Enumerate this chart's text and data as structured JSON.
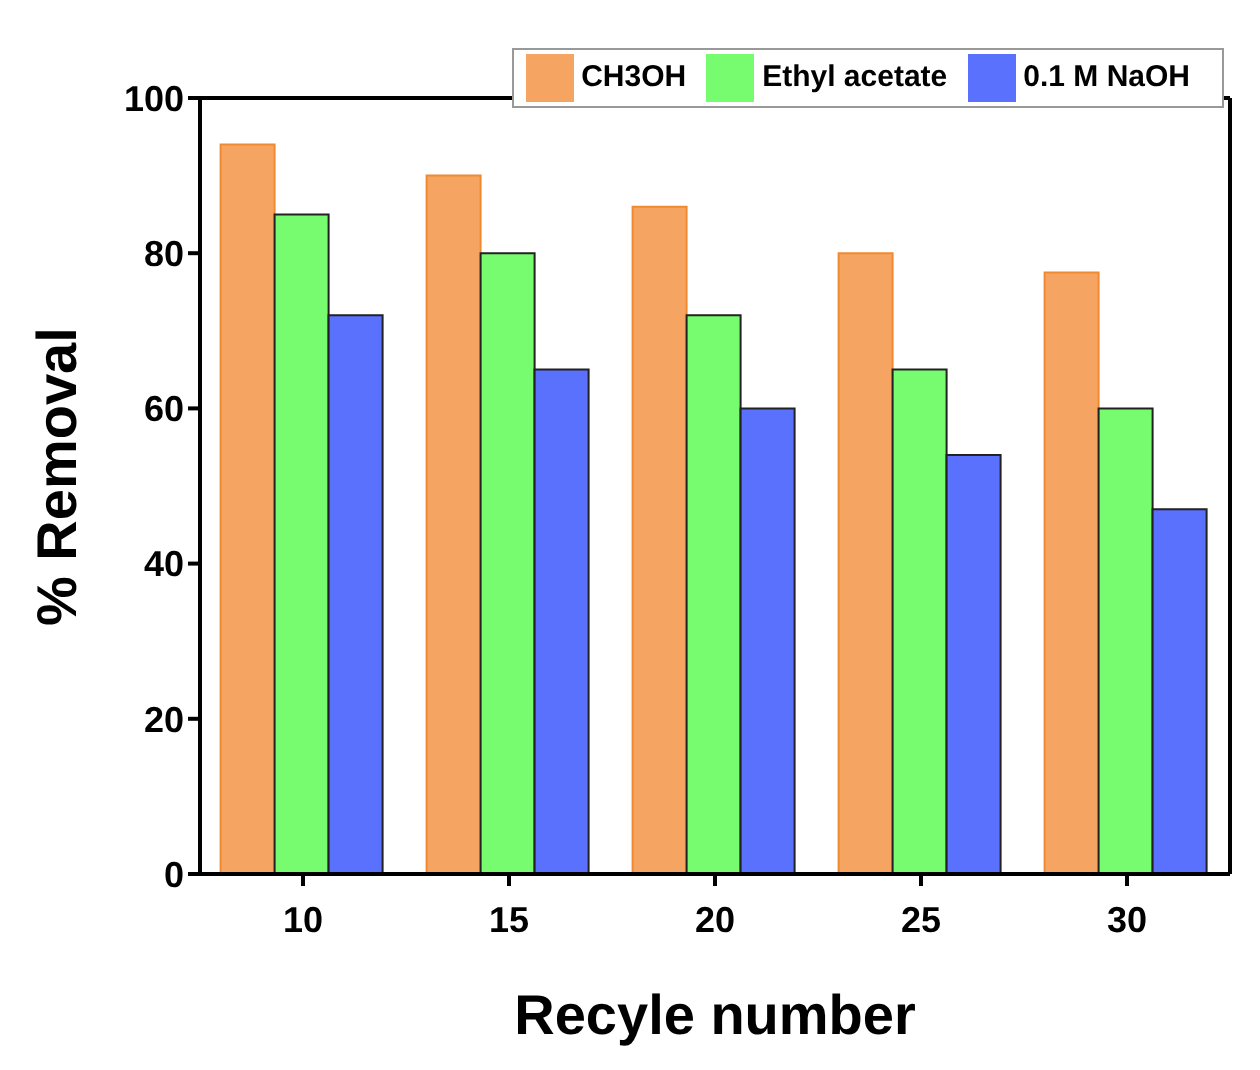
{
  "chart_data": {
    "type": "bar",
    "xlabel": "Recyle number",
    "ylabel": "% Removal",
    "categories": [
      "10",
      "15",
      "20",
      "25",
      "30"
    ],
    "series": [
      {
        "name": "CH3OH",
        "color": "#f5a462",
        "values": [
          94,
          90,
          86,
          80,
          77.5
        ]
      },
      {
        "name": "Ethyl acetate",
        "color": "#77fc6f",
        "values": [
          85,
          80,
          72,
          65,
          60
        ]
      },
      {
        "name": "0.1 M NaOH",
        "color": "#5a71fe",
        "values": [
          72,
          65,
          60,
          54,
          47
        ]
      }
    ],
    "ylim": [
      0,
      100
    ],
    "yticks": [
      0,
      20,
      40,
      60,
      80,
      100
    ],
    "grid": false,
    "legend": "top right"
  }
}
